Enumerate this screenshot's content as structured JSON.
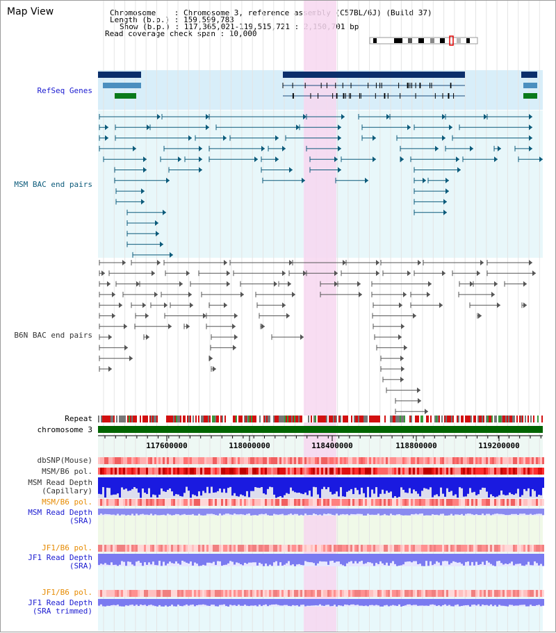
{
  "title": "Map View",
  "header": {
    "chromosome": "Chromosome    : Chromosome 3, reference assembly (C57BL/6J) (Build 37)",
    "length": "Length (b.p.) : 159,599,783",
    "show": "Show (b.p.) : 117,365,021-119,515,721 : 2,150,701 bp",
    "span": "Read coverage check span : 10,000"
  },
  "labels": {
    "refseq": "RefSeq Genes",
    "msm_bac": "MSM BAC end pairs",
    "b6n_bac": "B6N BAC end pairs",
    "repeat": "Repeat",
    "chromosome": "chromosome 3",
    "dbsnp": "dbSNP(Mouse)",
    "msm_b6_pol_1": "MSM/B6 pol.",
    "msm_read_depth_cap_1": "MSM Read Depth",
    "msm_read_depth_cap_2": "(Capillary)",
    "msm_b6_pol_2": "MSM/B6 pol.",
    "msm_read_depth_sra_1": "MSM Read Depth",
    "msm_read_depth_sra_2": "(SRA)",
    "jf1_b6_pol_1": "JF1/B6 pol.",
    "jf1_read_depth_sra_1": "JF1 Read Depth",
    "jf1_read_depth_sra_2": "(SRA)",
    "jf1_b6_pol_2": "JF1/B6 pol.",
    "jf1_read_depth_trim_1": "JF1 Read Depth",
    "jf1_read_depth_trim_2": "(SRA trimmed)"
  },
  "axis_ticks": [
    "117600000",
    "118000000",
    "118400000",
    "118800000",
    "119200000"
  ],
  "colors": {
    "refseq_bg": "#d8eef9",
    "bac_bg": "#e8f7fa",
    "highlight": "#f7d7f0",
    "refseq_label": "#1a1ad0",
    "msm_label": "#0b5a7a",
    "b6n_label": "#333333",
    "pol_orange": "#e68a00",
    "depth_blue": "#1a1ad0",
    "chromosome_green": "#006400"
  }
}
